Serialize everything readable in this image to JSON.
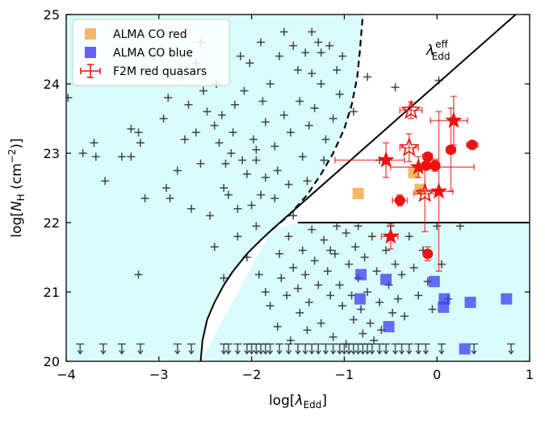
{
  "chart_data": {
    "type": "scatter",
    "xlabel_main": "log[",
    "xlabel_sym": "λ",
    "xlabel_sub": "Edd",
    "xlabel_close": "]",
    "ylabel_main": "log[",
    "ylabel_sym": "N",
    "ylabel_sub": "H",
    "ylabel_unit": " (cm",
    "ylabel_exp": "−2",
    "ylabel_close": ")]",
    "xlim": [
      -4,
      1
    ],
    "ylim": [
      20,
      25
    ],
    "xticks": [
      -4,
      -3,
      -2,
      -1,
      0,
      1
    ],
    "xtick_labels": [
      "−4",
      "−3",
      "−2",
      "−1",
      "0",
      "1"
    ],
    "yticks": [
      20,
      21,
      22,
      23,
      24,
      25
    ],
    "ytick_labels": [
      "20",
      "21",
      "22",
      "23",
      "24",
      "25"
    ],
    "annotation": {
      "sym": "λ",
      "sup": "eff",
      "sub": "Edd"
    },
    "legend": {
      "position": "top-left",
      "entries": [
        {
          "label": "ALMA CO red",
          "color": "#f5a442"
        },
        {
          "label": "ALMA CO blue",
          "color": "#3b3bef"
        },
        {
          "label": "F2M red quasars",
          "color": "#ee1111"
        }
      ]
    },
    "colors": {
      "background": "#d9fbfb",
      "red": "#ee1111",
      "orange": "#f5a442",
      "blue": "#3b3bef",
      "plus": "#333333"
    },
    "eff_curve_solid": [
      [
        -2.55,
        20
      ],
      [
        -2.53,
        20.3
      ],
      [
        -2.48,
        20.6
      ],
      [
        -2.4,
        20.85
      ],
      [
        -2.3,
        21.1
      ],
      [
        -2.2,
        21.3
      ],
      [
        -2.05,
        21.55
      ],
      [
        -1.9,
        21.75
      ],
      [
        -1.78,
        21.9
      ]
    ],
    "eff_curve_dashed": [
      [
        -1.78,
        21.9
      ],
      [
        -1.6,
        22.1
      ],
      [
        -1.4,
        22.4
      ],
      [
        -1.25,
        22.7
      ],
      [
        -1.12,
        23.0
      ],
      [
        -1.0,
        23.35
      ],
      [
        -0.92,
        23.7
      ],
      [
        -0.86,
        24.1
      ],
      [
        -0.83,
        24.5
      ],
      [
        -0.8,
        25
      ]
    ],
    "eff_line": [
      [
        -1.78,
        21.9
      ],
      [
        0.85,
        25
      ]
    ],
    "horizontal_line": {
      "y": 22,
      "x": [
        -1.5,
        1
      ]
    },
    "plus_points": [
      [
        -3.98,
        23.8
      ],
      [
        -3.82,
        23.0
      ],
      [
        -3.7,
        23.15
      ],
      [
        -3.68,
        22.95
      ],
      [
        -3.58,
        22.6
      ],
      [
        -3.4,
        22.95
      ],
      [
        -3.3,
        23.35
      ],
      [
        -3.22,
        23.3
      ],
      [
        -3.2,
        23.15
      ],
      [
        -3.3,
        22.95
      ],
      [
        -3.22,
        21.25
      ],
      [
        -3.15,
        22.35
      ],
      [
        -2.95,
        23.5
      ],
      [
        -2.92,
        22.5
      ],
      [
        -2.88,
        22.35
      ],
      [
        -2.8,
        22.75
      ],
      [
        -2.72,
        23.2
      ],
      [
        -2.68,
        23.7
      ],
      [
        -2.6,
        24.3
      ],
      [
        -2.52,
        23.9
      ],
      [
        -2.48,
        23.6
      ],
      [
        -2.4,
        23.4
      ],
      [
        -2.38,
        24.0
      ],
      [
        -2.32,
        23.55
      ],
      [
        -2.28,
        22.85
      ],
      [
        -2.22,
        23.0
      ],
      [
        -2.18,
        23.7
      ],
      [
        -2.12,
        24.4
      ],
      [
        -2.08,
        23.9
      ],
      [
        -2.02,
        24.3
      ],
      [
        -1.98,
        23.2
      ],
      [
        -1.95,
        22.9
      ],
      [
        -1.9,
        22.4
      ],
      [
        -1.88,
        23.75
      ],
      [
        -1.85,
        23.45
      ],
      [
        -1.8,
        24.0
      ],
      [
        -1.75,
        23.1
      ],
      [
        -1.72,
        22.75
      ],
      [
        -1.7,
        24.4
      ],
      [
        -1.65,
        23.55
      ],
      [
        -1.6,
        22.55
      ],
      [
        -1.58,
        23.3
      ],
      [
        -1.55,
        22.1
      ],
      [
        -1.5,
        24.2
      ],
      [
        -1.48,
        23.75
      ],
      [
        -1.45,
        22.95
      ],
      [
        -1.42,
        24.45
      ],
      [
        -1.4,
        22.6
      ],
      [
        -1.38,
        23.4
      ],
      [
        -1.35,
        24.15
      ],
      [
        -1.32,
        23.65
      ],
      [
        -1.28,
        24.6
      ],
      [
        -1.25,
        24.0
      ],
      [
        -1.22,
        22.9
      ],
      [
        -1.2,
        23.2
      ],
      [
        -1.16,
        24.55
      ],
      [
        -1.12,
        23.5
      ],
      [
        -1.08,
        24.2
      ],
      [
        -1.05,
        23.85
      ],
      [
        -2.25,
        22.4
      ],
      [
        -2.3,
        22.5
      ],
      [
        -2.15,
        22.2
      ],
      [
        -2.45,
        22.1
      ],
      [
        -2.35,
        23.15
      ],
      [
        -2.6,
        23.3
      ],
      [
        -2.75,
        24.1
      ],
      [
        -2.9,
        23.8
      ],
      [
        -3.05,
        24.4
      ],
      [
        -2.55,
        24.6
      ],
      [
        -1.65,
        24.75
      ],
      [
        -1.9,
        24.6
      ],
      [
        -1.35,
        24.75
      ],
      [
        -1.25,
        24.45
      ],
      [
        -1.55,
        24.55
      ],
      [
        -1.02,
        24.4
      ],
      [
        -0.9,
        23.6
      ],
      [
        -0.75,
        24.1
      ],
      [
        -0.45,
        23.95
      ],
      [
        0.02,
        24.05
      ],
      [
        -0.62,
        22.9
      ],
      [
        -1.85,
        22.65
      ],
      [
        -1.75,
        22.35
      ],
      [
        -2.05,
        22.7
      ],
      [
        -2.1,
        22.9
      ],
      [
        -1.95,
        23.05
      ],
      [
        -2.2,
        23.3
      ],
      [
        -2.55,
        22.85
      ],
      [
        -2.65,
        22.2
      ],
      [
        -2.0,
        22.25
      ],
      [
        -2.15,
        21.8
      ],
      [
        -2.05,
        21.5
      ],
      [
        -1.92,
        21.25
      ],
      [
        -1.85,
        21.0
      ],
      [
        -1.8,
        20.8
      ],
      [
        -1.7,
        21.55
      ],
      [
        -1.68,
        21.2
      ],
      [
        -1.62,
        20.95
      ],
      [
        -1.6,
        21.8
      ],
      [
        -1.55,
        21.35
      ],
      [
        -1.5,
        21.05
      ],
      [
        -1.48,
        20.7
      ],
      [
        -1.45,
        21.6
      ],
      [
        -1.42,
        21.25
      ],
      [
        -1.38,
        20.85
      ],
      [
        -1.35,
        21.9
      ],
      [
        -1.32,
        21.45
      ],
      [
        -1.28,
        21.1
      ],
      [
        -1.25,
        20.55
      ],
      [
        -1.22,
        21.75
      ],
      [
        -1.18,
        21.3
      ],
      [
        -1.15,
        20.95
      ],
      [
        -1.12,
        20.35
      ],
      [
        -1.1,
        21.55
      ],
      [
        -1.05,
        21.1
      ],
      [
        -1.02,
        20.8
      ],
      [
        -0.98,
        21.85
      ],
      [
        -0.95,
        21.4
      ],
      [
        -0.92,
        20.95
      ],
      [
        -0.9,
        20.6
      ],
      [
        -0.88,
        21.65
      ],
      [
        -0.85,
        21.2
      ],
      [
        -0.82,
        20.75
      ],
      [
        -0.8,
        20.4
      ],
      [
        -0.78,
        21.5
      ],
      [
        -0.75,
        21.0
      ],
      [
        -0.72,
        20.55
      ],
      [
        -0.7,
        21.8
      ],
      [
        -0.65,
        21.3
      ],
      [
        -0.62,
        20.85
      ],
      [
        -0.6,
        20.45
      ],
      [
        -0.55,
        21.6
      ],
      [
        -0.52,
        21.1
      ],
      [
        -0.48,
        20.7
      ],
      [
        -0.45,
        21.4
      ],
      [
        -0.42,
        20.9
      ],
      [
        -0.38,
        21.25
      ],
      [
        -0.35,
        20.65
      ],
      [
        -0.3,
        21.8
      ],
      [
        -0.25,
        21.35
      ],
      [
        -0.2,
        20.95
      ],
      [
        -0.15,
        21.6
      ],
      [
        -0.1,
        21.15
      ],
      [
        -0.05,
        20.75
      ],
      [
        0.0,
        21.95
      ],
      [
        0.05,
        21.4
      ],
      [
        0.12,
        20.9
      ],
      [
        -2.3,
        21.2
      ],
      [
        -2.4,
        21.65
      ],
      [
        -1.95,
        21.95
      ],
      [
        -1.72,
        20.5
      ],
      [
        -1.58,
        20.3
      ],
      [
        -1.4,
        20.45
      ],
      [
        -0.98,
        20.25
      ],
      [
        -0.68,
        20.3
      ],
      [
        -1.08,
        21.95
      ],
      [
        -0.85,
        21.95
      ],
      [
        -0.5,
        21.95
      ],
      [
        0.25,
        21.95
      ],
      [
        -1.15,
        21.6
      ]
    ],
    "upper_limits_x": [
      -3.85,
      -3.6,
      -3.4,
      -3.2,
      -2.8,
      -2.65,
      -2.3,
      -2.25,
      -2.15,
      -2.05,
      -2.0,
      -1.95,
      -1.9,
      -1.85,
      -1.8,
      -1.7,
      -1.6,
      -1.5,
      -1.42,
      -1.35,
      -1.28,
      -1.2,
      -1.12,
      -1.05,
      -1.0,
      -0.95,
      -0.9,
      -0.85,
      -0.8,
      -0.75,
      -0.7,
      -0.62,
      -0.55,
      -0.45,
      -0.38,
      -0.3,
      -0.2,
      -0.12,
      0.05,
      0.4,
      0.8
    ],
    "plus_upper_y": 20.18,
    "alma_red": [
      [
        -0.85,
        22.42
      ],
      [
        -0.25,
        22.72
      ],
      [
        -0.18,
        22.48
      ],
      [
        -0.05,
        22.85
      ]
    ],
    "alma_blue": [
      [
        -0.82,
        21.25
      ],
      [
        -0.83,
        20.9
      ],
      [
        -0.55,
        21.18
      ],
      [
        -0.52,
        20.5
      ],
      [
        -0.03,
        21.15
      ],
      [
        0.08,
        20.9
      ],
      [
        0.07,
        20.78
      ],
      [
        0.36,
        20.85
      ],
      [
        0.75,
        20.9
      ],
      [
        0.3,
        20.18
      ]
    ],
    "f2m_circles": [
      {
        "x": 0.38,
        "y": 23.12,
        "xerr": 0.06,
        "yerr": 0.05
      },
      {
        "x": -0.4,
        "y": 22.32,
        "xerr": 0.08,
        "yerr": 0.08
      },
      {
        "x": -0.1,
        "y": 22.95,
        "xerr": 0.05,
        "yerr": 0.05
      },
      {
        "x": -0.12,
        "y": 22.82,
        "xerr": 0.04,
        "yerr": 0.05
      },
      {
        "x": -0.02,
        "y": 22.82,
        "xerr": 0.05,
        "yerr": 0.08
      },
      {
        "x": -0.1,
        "y": 21.55,
        "xerr": 0.04,
        "yerr": 0.1
      },
      {
        "x": 0.15,
        "y": 23.05,
        "xerr": 0.05,
        "yerr": 0.6
      }
    ],
    "f2m_stars_filled": [
      {
        "x": -0.55,
        "y": 22.9,
        "xerr_lo": 0.55,
        "xerr_hi": 0.2,
        "yerr": 0.25
      },
      {
        "x": -0.2,
        "y": 22.8,
        "xerr_lo": 0.3,
        "xerr_hi": 0.6,
        "yerr": 0.15
      },
      {
        "x": 0.02,
        "y": 22.45,
        "xerr_lo": 0.2,
        "xerr_hi": 0.15,
        "yerr": 1.15
      },
      {
        "x": 0.18,
        "y": 23.47,
        "xerr_lo": 0.25,
        "xerr_hi": 0.15,
        "yerr": 0.35
      },
      {
        "x": -0.5,
        "y": 21.8,
        "xerr_lo": 0.1,
        "xerr_hi": 0.08,
        "yerr": 0.18
      }
    ],
    "f2m_stars_open": [
      {
        "x": -0.28,
        "y": 23.62,
        "xerr_lo": 0.12,
        "xerr_hi": 0.12,
        "yerr": 0.12
      },
      {
        "x": -0.3,
        "y": 23.08,
        "xerr_lo": 0.1,
        "xerr_hi": 0.1,
        "yerr": 0.2
      },
      {
        "x": -0.13,
        "y": 22.42,
        "xerr_lo": 0.12,
        "xerr_hi": 0.12,
        "yerr": 0.55
      }
    ]
  }
}
